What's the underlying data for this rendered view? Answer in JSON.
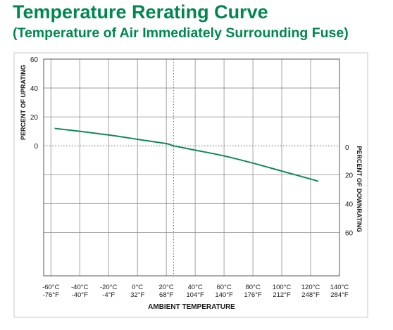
{
  "colors": {
    "accent_green": "#00884f",
    "curve": "#0c8a56",
    "frame": "#c9c9c9",
    "text": "#1a1a1a"
  },
  "chart_data": {
    "type": "line",
    "title": "Temperature Rerating Curve",
    "subtitle": "(Temperature of Air Immediately Surrounding Fuse)",
    "xlabel": "AMBIENT TEMPERATURE",
    "ylabel_left": "PERCENT OF UPRATING",
    "ylabel_right": "PERCENT OF DOWNRATING",
    "x_ticks": [
      {
        "c": -60,
        "label_c": "-60°C",
        "label_f": "-76°F"
      },
      {
        "c": -40,
        "label_c": "-40°C",
        "label_f": "-40°F"
      },
      {
        "c": -20,
        "label_c": "-20°C",
        "label_f": "-4°F"
      },
      {
        "c": 0,
        "label_c": "0°C",
        "label_f": "32°F"
      },
      {
        "c": 20,
        "label_c": "20°C",
        "label_f": "68°F"
      },
      {
        "c": 40,
        "label_c": "40°C",
        "label_f": "104°F"
      },
      {
        "c": 60,
        "label_c": "60°C",
        "label_f": "140°F"
      },
      {
        "c": 80,
        "label_c": "80°C",
        "label_f": "176°F"
      },
      {
        "c": 100,
        "label_c": "100°C",
        "label_f": "212°F"
      },
      {
        "c": 120,
        "label_c": "120°C",
        "label_f": "248°F"
      },
      {
        "c": 140,
        "label_c": "140°C",
        "label_f": "284°F"
      }
    ],
    "xlim": [
      -65,
      140
    ],
    "ylim": [
      -90,
      60
    ],
    "left_ticks": [
      {
        "v": 60,
        "label": "60"
      },
      {
        "v": 40,
        "label": "40"
      },
      {
        "v": 20,
        "label": "20"
      },
      {
        "v": 0,
        "label": "0"
      }
    ],
    "right_ticks": [
      {
        "v": 0,
        "label": "0"
      },
      {
        "v": -20,
        "label": "20"
      },
      {
        "v": -40,
        "label": "40"
      },
      {
        "v": -60,
        "label": "60"
      }
    ],
    "reference_temp_c": 25,
    "series": [
      {
        "x": [
          -57,
          -40,
          -20,
          0,
          20,
          25,
          40,
          60,
          80,
          100,
          120,
          125
        ],
        "y": [
          12,
          10,
          7.5,
          4.5,
          1.5,
          0,
          -3,
          -7,
          -12,
          -17.5,
          -23,
          -24.5
        ]
      }
    ]
  }
}
